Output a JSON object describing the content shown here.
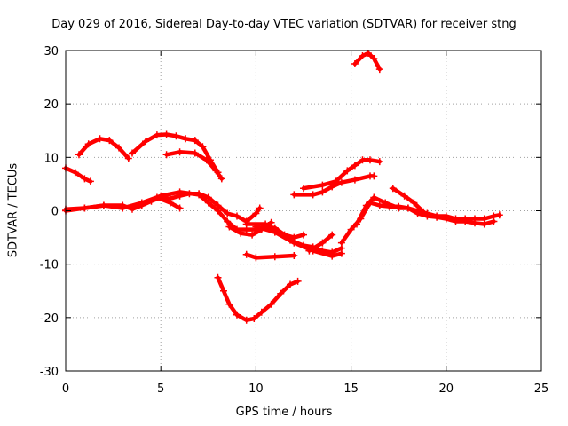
{
  "chart_data": {
    "type": "scatter",
    "title": "Day 029 of 2016, Sidereal Day-to-day VTEC variation (SDTVAR) for receiver stng",
    "xlabel": "GPS time / hours",
    "ylabel": "SDTVAR / TECUs",
    "xlim": [
      0,
      25
    ],
    "ylim": [
      -30,
      30
    ],
    "xticks": [
      "0",
      "5",
      "10",
      "15",
      "20",
      "25"
    ],
    "yticks": [
      "-30",
      "-20",
      "-10",
      "0",
      "10",
      "20",
      "30"
    ],
    "grid": true,
    "marker_color": "#ff0000",
    "series": [
      {
        "name": "s1",
        "points": [
          [
            0,
            8
          ],
          [
            0.5,
            7.2
          ],
          [
            1.0,
            6.0
          ],
          [
            1.3,
            5.5
          ]
        ]
      },
      {
        "name": "s2",
        "points": [
          [
            0.7,
            10.5
          ],
          [
            1.2,
            12.5
          ],
          [
            1.8,
            13.5
          ],
          [
            2.3,
            13.2
          ],
          [
            2.8,
            11.8
          ],
          [
            3.3,
            9.8
          ]
        ]
      },
      {
        "name": "s3",
        "points": [
          [
            3.5,
            10.8
          ],
          [
            4.2,
            13.0
          ],
          [
            4.8,
            14.2
          ],
          [
            5.3,
            14.3
          ],
          [
            5.8,
            14.0
          ],
          [
            6.3,
            13.5
          ],
          [
            6.8,
            13.2
          ],
          [
            7.2,
            12.0
          ],
          [
            7.6,
            9.5
          ],
          [
            8.0,
            7.2
          ]
        ]
      },
      {
        "name": "s4",
        "points": [
          [
            5.3,
            10.5
          ],
          [
            6.0,
            11.0
          ],
          [
            6.8,
            10.8
          ],
          [
            7.4,
            9.5
          ],
          [
            7.9,
            7.5
          ],
          [
            8.2,
            6.0
          ]
        ]
      },
      {
        "name": "s5",
        "points": [
          [
            0,
            0.3
          ],
          [
            1,
            0.5
          ],
          [
            2,
            1.0
          ],
          [
            3,
            1.0
          ],
          [
            3.5,
            0.3
          ],
          [
            4,
            1.0
          ],
          [
            4.5,
            1.8
          ],
          [
            5,
            2.5
          ],
          [
            5.5,
            2.3
          ],
          [
            6,
            2.8
          ],
          [
            6.5,
            3.2
          ],
          [
            7,
            3.2
          ],
          [
            7.5,
            2.5
          ],
          [
            8,
            1.0
          ],
          [
            8.5,
            -0.5
          ],
          [
            9,
            -1.0
          ],
          [
            9.5,
            -2.0
          ],
          [
            10,
            -0.5
          ],
          [
            10.2,
            0.5
          ]
        ]
      },
      {
        "name": "s6",
        "points": [
          [
            0,
            0
          ],
          [
            1,
            0.5
          ],
          [
            2,
            1.0
          ],
          [
            3,
            0.5
          ],
          [
            4,
            1.5
          ],
          [
            5,
            2.8
          ],
          [
            6,
            3.5
          ],
          [
            7,
            3.0
          ],
          [
            7.5,
            1.5
          ],
          [
            8,
            0
          ],
          [
            8.5,
            -2
          ],
          [
            9,
            -3.5
          ],
          [
            9.5,
            -3.5
          ],
          [
            10,
            -3.5
          ],
          [
            10.5,
            -3.0
          ],
          [
            11,
            -3.2
          ],
          [
            11.5,
            -4.5
          ],
          [
            12,
            -5.0
          ],
          [
            12.5,
            -4.5
          ]
        ]
      },
      {
        "name": "s7",
        "points": [
          [
            4.8,
            2.5
          ],
          [
            5.5,
            1.5
          ],
          [
            6.0,
            0.5
          ]
        ]
      },
      {
        "name": "s8",
        "points": [
          [
            8.6,
            -3
          ],
          [
            9.2,
            -4.2
          ],
          [
            9.8,
            -4.5
          ],
          [
            10.3,
            -3.5
          ],
          [
            10.8,
            -2.2
          ]
        ]
      },
      {
        "name": "s9",
        "points": [
          [
            9.5,
            -2.5
          ],
          [
            10.5,
            -2.5
          ],
          [
            11,
            -3.5
          ],
          [
            11.8,
            -5.5
          ],
          [
            12.5,
            -6.5
          ],
          [
            13,
            -6.8
          ],
          [
            13.5,
            -7.5
          ],
          [
            14,
            -7.8
          ],
          [
            14.5,
            -7.0
          ]
        ]
      },
      {
        "name": "s10",
        "points": [
          [
            10,
            -3.0
          ],
          [
            11,
            -4.0
          ],
          [
            12,
            -6.0
          ],
          [
            13,
            -7.5
          ],
          [
            14,
            -8.5
          ],
          [
            14.5,
            -8.0
          ]
        ]
      },
      {
        "name": "s11",
        "points": [
          [
            9.5,
            -8.2
          ],
          [
            10,
            -8.8
          ],
          [
            11,
            -8.6
          ],
          [
            12,
            -8.4
          ]
        ]
      },
      {
        "name": "s12",
        "points": [
          [
            12.8,
            -7.5
          ],
          [
            13.5,
            -6.0
          ],
          [
            14,
            -4.5
          ]
        ]
      },
      {
        "name": "s13",
        "points": [
          [
            8.0,
            -12.5
          ],
          [
            8.3,
            -15
          ],
          [
            8.6,
            -17.5
          ],
          [
            9.0,
            -19.5
          ],
          [
            9.5,
            -20.5
          ],
          [
            9.9,
            -20.2
          ],
          [
            10.3,
            -19
          ],
          [
            10.8,
            -17.5
          ],
          [
            11.3,
            -15.5
          ],
          [
            11.8,
            -13.8
          ],
          [
            12.2,
            -13.2
          ]
        ]
      },
      {
        "name": "s14",
        "points": [
          [
            12.5,
            4.2
          ],
          [
            13.5,
            4.8
          ],
          [
            14.2,
            5.5
          ],
          [
            14.8,
            7.5
          ],
          [
            15.2,
            8.5
          ],
          [
            15.6,
            9.5
          ],
          [
            16.0,
            9.5
          ],
          [
            16.5,
            9.2
          ]
        ]
      },
      {
        "name": "s15",
        "points": [
          [
            12.0,
            3.0
          ],
          [
            13.0,
            3.0
          ],
          [
            13.5,
            3.5
          ],
          [
            14.0,
            4.5
          ],
          [
            14.5,
            5.3
          ],
          [
            15.2,
            5.8
          ],
          [
            16.0,
            6.5
          ],
          [
            16.2,
            6.5
          ]
        ]
      },
      {
        "name": "s16",
        "points": [
          [
            15.2,
            27.5
          ],
          [
            15.6,
            29.0
          ],
          [
            15.9,
            29.5
          ],
          [
            16.2,
            28.5
          ],
          [
            16.5,
            26.5
          ]
        ]
      },
      {
        "name": "s17",
        "points": [
          [
            14.5,
            -6.0
          ],
          [
            15.0,
            -3.5
          ],
          [
            15.5,
            -1.5
          ],
          [
            16,
            1.5
          ],
          [
            16.5,
            1.0
          ],
          [
            17,
            0.8
          ],
          [
            17.5,
            0.8
          ],
          [
            18,
            0.5
          ],
          [
            18.5,
            0.0
          ],
          [
            19,
            -0.5
          ],
          [
            19.5,
            -1.0
          ],
          [
            20,
            -1.0
          ],
          [
            20.5,
            -1.5
          ],
          [
            21,
            -1.5
          ],
          [
            21.5,
            -1.5
          ],
          [
            22,
            -1.5
          ],
          [
            22.5,
            -1.0
          ],
          [
            22.8,
            -0.8
          ]
        ]
      },
      {
        "name": "s18",
        "points": [
          [
            15.3,
            -2.5
          ],
          [
            15.8,
            1.0
          ],
          [
            16.2,
            2.5
          ],
          [
            16.8,
            1.5
          ],
          [
            17.5,
            0.5
          ],
          [
            18,
            0.5
          ],
          [
            18.5,
            -0.5
          ],
          [
            19,
            -1.0
          ],
          [
            19.5,
            -1.2
          ],
          [
            20,
            -1.5
          ],
          [
            20.5,
            -2.0
          ],
          [
            21,
            -2.0
          ],
          [
            21.5,
            -2.3
          ],
          [
            22,
            -2.5
          ],
          [
            22.5,
            -2.0
          ]
        ]
      },
      {
        "name": "s19",
        "points": [
          [
            17.2,
            4.2
          ],
          [
            17.8,
            2.8
          ],
          [
            18.3,
            1.5
          ],
          [
            18.8,
            -0.2
          ]
        ]
      }
    ]
  }
}
